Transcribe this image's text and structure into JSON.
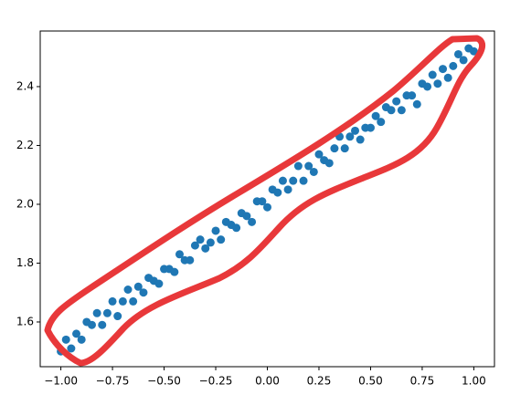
{
  "chart_data": {
    "type": "scatter",
    "color": "#1f77b4",
    "x": [
      -1.0,
      -0.975,
      -0.95,
      -0.925,
      -0.9,
      -0.875,
      -0.85,
      -0.825,
      -0.8,
      -0.775,
      -0.75,
      -0.725,
      -0.7,
      -0.675,
      -0.65,
      -0.625,
      -0.6,
      -0.575,
      -0.55,
      -0.525,
      -0.5,
      -0.475,
      -0.45,
      -0.425,
      -0.4,
      -0.375,
      -0.35,
      -0.325,
      -0.3,
      -0.275,
      -0.25,
      -0.225,
      -0.2,
      -0.175,
      -0.15,
      -0.125,
      -0.1,
      -0.075,
      -0.05,
      -0.025,
      0.0,
      0.025,
      0.05,
      0.075,
      0.1,
      0.125,
      0.15,
      0.175,
      0.2,
      0.225,
      0.25,
      0.275,
      0.3,
      0.325,
      0.35,
      0.375,
      0.4,
      0.425,
      0.45,
      0.475,
      0.5,
      0.525,
      0.55,
      0.575,
      0.6,
      0.625,
      0.65,
      0.675,
      0.7,
      0.725,
      0.75,
      0.775,
      0.8,
      0.825,
      0.85,
      0.875,
      0.9,
      0.925,
      0.95,
      0.975,
      1.0
    ],
    "values": [
      1.5,
      1.54,
      1.51,
      1.56,
      1.54,
      1.6,
      1.59,
      1.63,
      1.59,
      1.63,
      1.67,
      1.62,
      1.67,
      1.71,
      1.67,
      1.72,
      1.7,
      1.75,
      1.74,
      1.73,
      1.78,
      1.78,
      1.77,
      1.83,
      1.81,
      1.81,
      1.86,
      1.88,
      1.85,
      1.87,
      1.91,
      1.88,
      1.94,
      1.93,
      1.92,
      1.97,
      1.96,
      1.94,
      2.01,
      2.01,
      1.99,
      2.05,
      2.04,
      2.08,
      2.05,
      2.08,
      2.13,
      2.08,
      2.13,
      2.11,
      2.17,
      2.15,
      2.14,
      2.19,
      2.23,
      2.19,
      2.23,
      2.25,
      2.22,
      2.26,
      2.26,
      2.3,
      2.28,
      2.33,
      2.32,
      2.35,
      2.32,
      2.37,
      2.37,
      2.34,
      2.41,
      2.4,
      2.44,
      2.41,
      2.46,
      2.43,
      2.47,
      2.51,
      2.49,
      2.53,
      2.52
    ],
    "xlim": [
      -1.1,
      1.1
    ],
    "ylim": [
      1.448,
      2.589
    ],
    "xticks": [
      {
        "value": -1,
        "label": "−1.00"
      },
      {
        "value": -0.75,
        "label": "−0.75"
      },
      {
        "value": -0.5,
        "label": "−0.50"
      },
      {
        "value": -0.25,
        "label": "−0.25"
      },
      {
        "value": 0,
        "label": "0.00"
      },
      {
        "value": 0.25,
        "label": "0.25"
      },
      {
        "value": 0.5,
        "label": "0.50"
      },
      {
        "value": 0.75,
        "label": "0.75"
      },
      {
        "value": 1,
        "label": "1.00"
      }
    ],
    "yticks": [
      1.6,
      1.8,
      {
        "value": 2,
        "label": "2.0"
      },
      2.2,
      2.4
    ],
    "grid": false
  }
}
